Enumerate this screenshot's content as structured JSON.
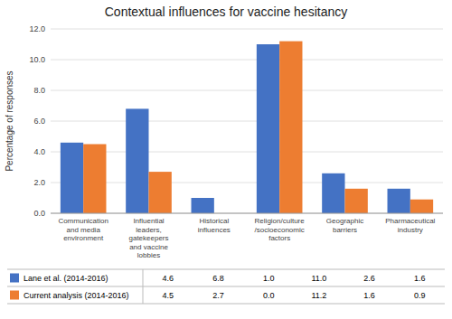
{
  "chart_data": {
    "type": "bar",
    "title": "Contextual influences for vaccine hesitancy",
    "y_label": "Percentage of responses",
    "categories": [
      "Communication\nand media\nenvironment",
      "Influential\nleaders,\ngatekeepers\nand vaccine\nlobbies",
      "Historical\ninfluences",
      "Religion/culture\n/socioeconomic\nfactors",
      "Geographic\nbarriers",
      "Pharmaceutical\nindustry"
    ],
    "series": [
      {
        "name": "Lane et al. (2014-2016)",
        "color": "#4472C4",
        "values": [
          4.6,
          6.8,
          1.0,
          11.0,
          2.6,
          1.6
        ],
        "value_labels": [
          "4.6",
          "6.8",
          "1.0",
          "11.0",
          "2.6",
          "1.6"
        ]
      },
      {
        "name": "Current analysis (2014-2016)",
        "color": "#ED7D31",
        "values": [
          4.5,
          2.7,
          0.0,
          11.2,
          1.6,
          0.9
        ],
        "value_labels": [
          "4.5",
          "2.7",
          "0.0",
          "11.2",
          "1.6",
          "0.9"
        ]
      }
    ],
    "ylim": [
      0,
      12.0
    ],
    "yticks": [
      {
        "value": 0,
        "label": "0.0"
      },
      {
        "value": 2,
        "label": "2.0"
      },
      {
        "value": 4,
        "label": "4.0"
      },
      {
        "value": 6,
        "label": "6.0"
      },
      {
        "value": 8,
        "label": "8.0"
      },
      {
        "value": 10,
        "label": "10.0"
      },
      {
        "value": 12,
        "label": "12.0"
      }
    ],
    "grid": true
  }
}
